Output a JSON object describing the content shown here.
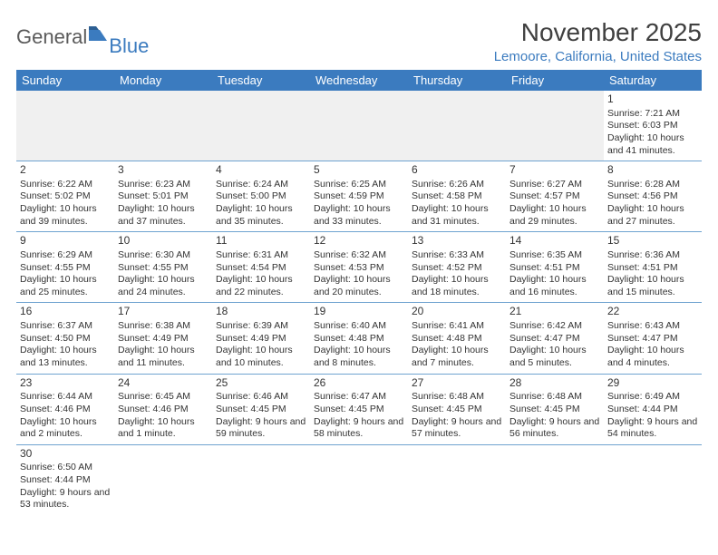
{
  "logo": {
    "general": "General",
    "blue": "Blue"
  },
  "title": "November 2025",
  "location": "Lemoore, California, United States",
  "colors": {
    "header_bg": "#3b7bbf",
    "header_fg": "#ffffff",
    "row_border": "#6fa3d0",
    "empty_bg": "#f0f0f0",
    "text": "#333333",
    "title_color": "#404040",
    "link_color": "#3b7bbf"
  },
  "weekdays": [
    "Sunday",
    "Monday",
    "Tuesday",
    "Wednesday",
    "Thursday",
    "Friday",
    "Saturday"
  ],
  "weeks": [
    [
      null,
      null,
      null,
      null,
      null,
      null,
      {
        "n": "1",
        "sr": "7:21 AM",
        "ss": "6:03 PM",
        "dl": "10 hours and 41 minutes."
      }
    ],
    [
      {
        "n": "2",
        "sr": "6:22 AM",
        "ss": "5:02 PM",
        "dl": "10 hours and 39 minutes."
      },
      {
        "n": "3",
        "sr": "6:23 AM",
        "ss": "5:01 PM",
        "dl": "10 hours and 37 minutes."
      },
      {
        "n": "4",
        "sr": "6:24 AM",
        "ss": "5:00 PM",
        "dl": "10 hours and 35 minutes."
      },
      {
        "n": "5",
        "sr": "6:25 AM",
        "ss": "4:59 PM",
        "dl": "10 hours and 33 minutes."
      },
      {
        "n": "6",
        "sr": "6:26 AM",
        "ss": "4:58 PM",
        "dl": "10 hours and 31 minutes."
      },
      {
        "n": "7",
        "sr": "6:27 AM",
        "ss": "4:57 PM",
        "dl": "10 hours and 29 minutes."
      },
      {
        "n": "8",
        "sr": "6:28 AM",
        "ss": "4:56 PM",
        "dl": "10 hours and 27 minutes."
      }
    ],
    [
      {
        "n": "9",
        "sr": "6:29 AM",
        "ss": "4:55 PM",
        "dl": "10 hours and 25 minutes."
      },
      {
        "n": "10",
        "sr": "6:30 AM",
        "ss": "4:55 PM",
        "dl": "10 hours and 24 minutes."
      },
      {
        "n": "11",
        "sr": "6:31 AM",
        "ss": "4:54 PM",
        "dl": "10 hours and 22 minutes."
      },
      {
        "n": "12",
        "sr": "6:32 AM",
        "ss": "4:53 PM",
        "dl": "10 hours and 20 minutes."
      },
      {
        "n": "13",
        "sr": "6:33 AM",
        "ss": "4:52 PM",
        "dl": "10 hours and 18 minutes."
      },
      {
        "n": "14",
        "sr": "6:35 AM",
        "ss": "4:51 PM",
        "dl": "10 hours and 16 minutes."
      },
      {
        "n": "15",
        "sr": "6:36 AM",
        "ss": "4:51 PM",
        "dl": "10 hours and 15 minutes."
      }
    ],
    [
      {
        "n": "16",
        "sr": "6:37 AM",
        "ss": "4:50 PM",
        "dl": "10 hours and 13 minutes."
      },
      {
        "n": "17",
        "sr": "6:38 AM",
        "ss": "4:49 PM",
        "dl": "10 hours and 11 minutes."
      },
      {
        "n": "18",
        "sr": "6:39 AM",
        "ss": "4:49 PM",
        "dl": "10 hours and 10 minutes."
      },
      {
        "n": "19",
        "sr": "6:40 AM",
        "ss": "4:48 PM",
        "dl": "10 hours and 8 minutes."
      },
      {
        "n": "20",
        "sr": "6:41 AM",
        "ss": "4:48 PM",
        "dl": "10 hours and 7 minutes."
      },
      {
        "n": "21",
        "sr": "6:42 AM",
        "ss": "4:47 PM",
        "dl": "10 hours and 5 minutes."
      },
      {
        "n": "22",
        "sr": "6:43 AM",
        "ss": "4:47 PM",
        "dl": "10 hours and 4 minutes."
      }
    ],
    [
      {
        "n": "23",
        "sr": "6:44 AM",
        "ss": "4:46 PM",
        "dl": "10 hours and 2 minutes."
      },
      {
        "n": "24",
        "sr": "6:45 AM",
        "ss": "4:46 PM",
        "dl": "10 hours and 1 minute."
      },
      {
        "n": "25",
        "sr": "6:46 AM",
        "ss": "4:45 PM",
        "dl": "9 hours and 59 minutes."
      },
      {
        "n": "26",
        "sr": "6:47 AM",
        "ss": "4:45 PM",
        "dl": "9 hours and 58 minutes."
      },
      {
        "n": "27",
        "sr": "6:48 AM",
        "ss": "4:45 PM",
        "dl": "9 hours and 57 minutes."
      },
      {
        "n": "28",
        "sr": "6:48 AM",
        "ss": "4:45 PM",
        "dl": "9 hours and 56 minutes."
      },
      {
        "n": "29",
        "sr": "6:49 AM",
        "ss": "4:44 PM",
        "dl": "9 hours and 54 minutes."
      }
    ],
    [
      {
        "n": "30",
        "sr": "6:50 AM",
        "ss": "4:44 PM",
        "dl": "9 hours and 53 minutes."
      },
      null,
      null,
      null,
      null,
      null,
      null
    ]
  ],
  "labels": {
    "sunrise": "Sunrise:",
    "sunset": "Sunset:",
    "daylight": "Daylight:"
  }
}
